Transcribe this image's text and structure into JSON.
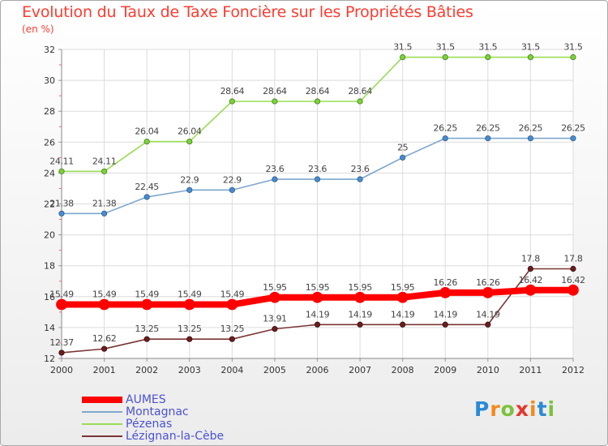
{
  "title": "Evolution du Taux de Taxe Foncière sur les Propriétés Bâties",
  "unit_label": "(en %)",
  "logo_text": "Proxiti",
  "chart_data": {
    "type": "line",
    "title": "Evolution du Taux de Taxe Foncière sur les Propriétés Bâties",
    "ylabel": "(en %)",
    "xlabel": "",
    "ylim": [
      12,
      32
    ],
    "y_ticks": [
      12,
      14,
      16,
      18,
      20,
      22,
      24,
      26,
      28,
      30,
      32
    ],
    "grid": true,
    "legend_placement": "bottom-left",
    "categories": [
      "2000",
      "2001",
      "2002",
      "2003",
      "2004",
      "2005",
      "2006",
      "2007",
      "2008",
      "2009",
      "2010",
      "2011",
      "2012"
    ],
    "series": [
      {
        "name": "AUMES",
        "color": "#ff0000",
        "values": [
          15.49,
          15.49,
          15.49,
          15.49,
          15.49,
          15.95,
          15.95,
          15.95,
          15.95,
          16.26,
          16.26,
          16.42,
          16.42
        ],
        "labels": [
          "15.49",
          "15.49",
          "15.49",
          "15.49",
          "15.49",
          "15.95",
          "15.95",
          "15.95",
          "15.95",
          "16.26",
          "16.26",
          "16.42",
          "16.42"
        ]
      },
      {
        "name": "Montagnac",
        "color": "#7fa7cc",
        "values": [
          21.38,
          21.38,
          22.45,
          22.9,
          22.9,
          23.6,
          23.6,
          23.6,
          25,
          26.25,
          26.25,
          26.25,
          26.25
        ],
        "labels": [
          "21.38",
          "21.38",
          "22.45",
          "22.9",
          "22.9",
          "23.6",
          "23.6",
          "23.6",
          "25",
          "26.25",
          "26.25",
          "26.25",
          "26.25"
        ]
      },
      {
        "name": "Pézenas",
        "color": "#99dd55",
        "values": [
          24.11,
          24.11,
          26.04,
          26.04,
          28.64,
          28.64,
          28.64,
          28.64,
          31.5,
          31.5,
          31.5,
          31.5,
          31.5
        ],
        "labels": [
          "24.11",
          "24.11",
          "26.04",
          "26.04",
          "28.64",
          "28.64",
          "28.64",
          "28.64",
          "31.5",
          "31.5",
          "31.5",
          "31.5",
          "31.5"
        ]
      },
      {
        "name": "Lézignan-la-Cèbe",
        "color": "#7a3535",
        "values": [
          12.37,
          12.62,
          13.25,
          13.25,
          13.25,
          13.91,
          14.19,
          14.19,
          14.19,
          14.19,
          14.19,
          17.8,
          17.8
        ],
        "labels": [
          "12.37",
          "12.62",
          "13.25",
          "13.25",
          "13.25",
          "13.91",
          "14.19",
          "14.19",
          "14.19",
          "14.19",
          "14.19",
          "17.8",
          "17.8"
        ]
      }
    ]
  }
}
